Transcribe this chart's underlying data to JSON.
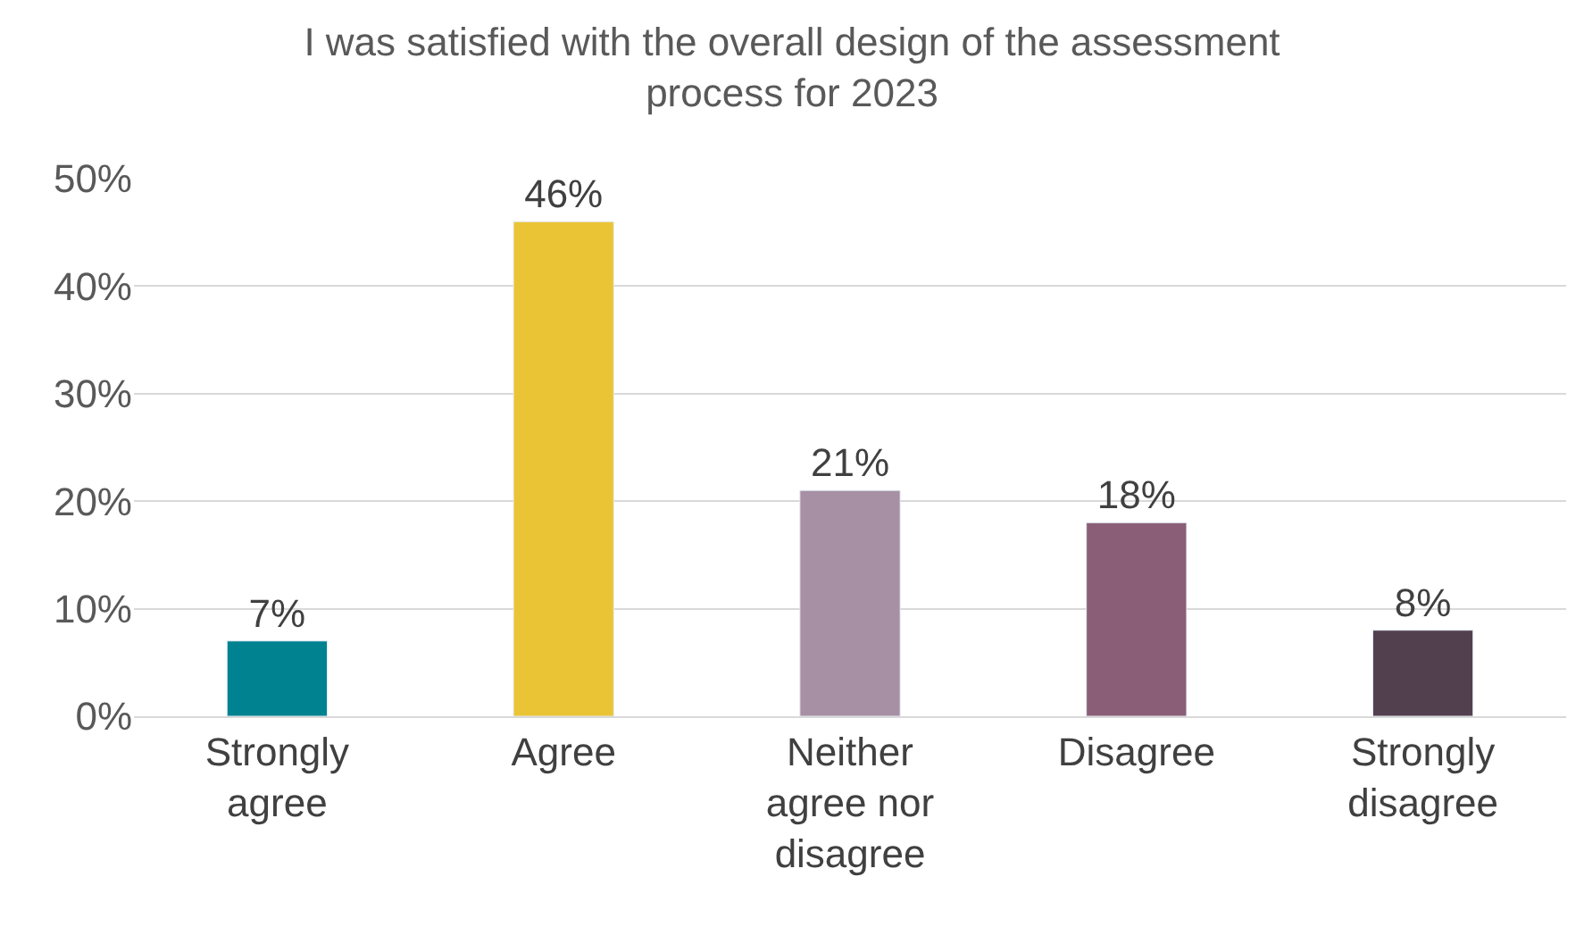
{
  "chart_data": {
    "type": "bar",
    "title": "I was satisfied with the overall design of the assessment process for 2023",
    "categories": [
      "Strongly agree",
      "Agree",
      "Neither agree nor disagree",
      "Disagree",
      "Strongly disagree"
    ],
    "values": [
      7,
      46,
      21,
      18,
      8
    ],
    "colors": [
      "#008290",
      "#ebc435",
      "#a78fa4",
      "#8a5e76",
      "#53404f"
    ],
    "value_labels": [
      "7%",
      "46%",
      "21%",
      "18%",
      "8%"
    ],
    "ylim": [
      0,
      50
    ],
    "yticks": [
      {
        "value": 0,
        "label": "0%"
      },
      {
        "value": 10,
        "label": "10%"
      },
      {
        "value": 20,
        "label": "20%"
      },
      {
        "value": 30,
        "label": "30%"
      },
      {
        "value": 40,
        "label": "40%"
      },
      {
        "value": 50,
        "label": "50%"
      }
    ],
    "grid": "y",
    "legend": false
  }
}
